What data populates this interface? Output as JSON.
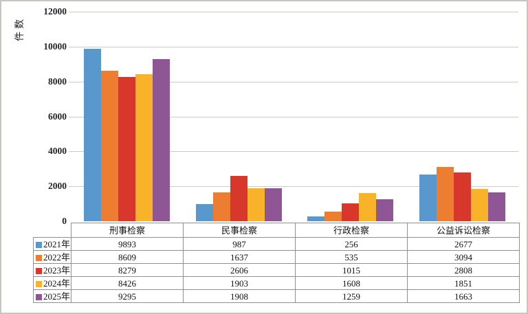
{
  "chart_data": {
    "type": "bar",
    "title": "",
    "ylabel": "件数",
    "xlabel": "",
    "categories": [
      "刑事检察",
      "民事检察",
      "行政检察",
      "公益诉讼检察"
    ],
    "series": [
      {
        "name": "2021年",
        "color": "#5898cc",
        "values": [
          9893,
          987,
          256,
          2677
        ]
      },
      {
        "name": "2022年",
        "color": "#ed7d31",
        "values": [
          8609,
          1637,
          535,
          3094
        ]
      },
      {
        "name": "2023年",
        "color": "#d8382c",
        "values": [
          8279,
          2606,
          1015,
          2808
        ]
      },
      {
        "name": "2024年",
        "color": "#f9b32b",
        "values": [
          8426,
          1903,
          1608,
          1851
        ]
      },
      {
        "name": "2025年",
        "color": "#8e5694",
        "values": [
          9295,
          1908,
          1259,
          1663
        ]
      }
    ],
    "ylim": [
      0,
      12000
    ],
    "ytick_step": 2000,
    "grid": true,
    "legend_position": "table-left",
    "data_table_below_chart": true
  },
  "colors": {
    "gridline": "#cbcbc6",
    "table_border": "#8f8f8f",
    "frame_border": "#c6c6c0",
    "background": "#ffffff"
  }
}
